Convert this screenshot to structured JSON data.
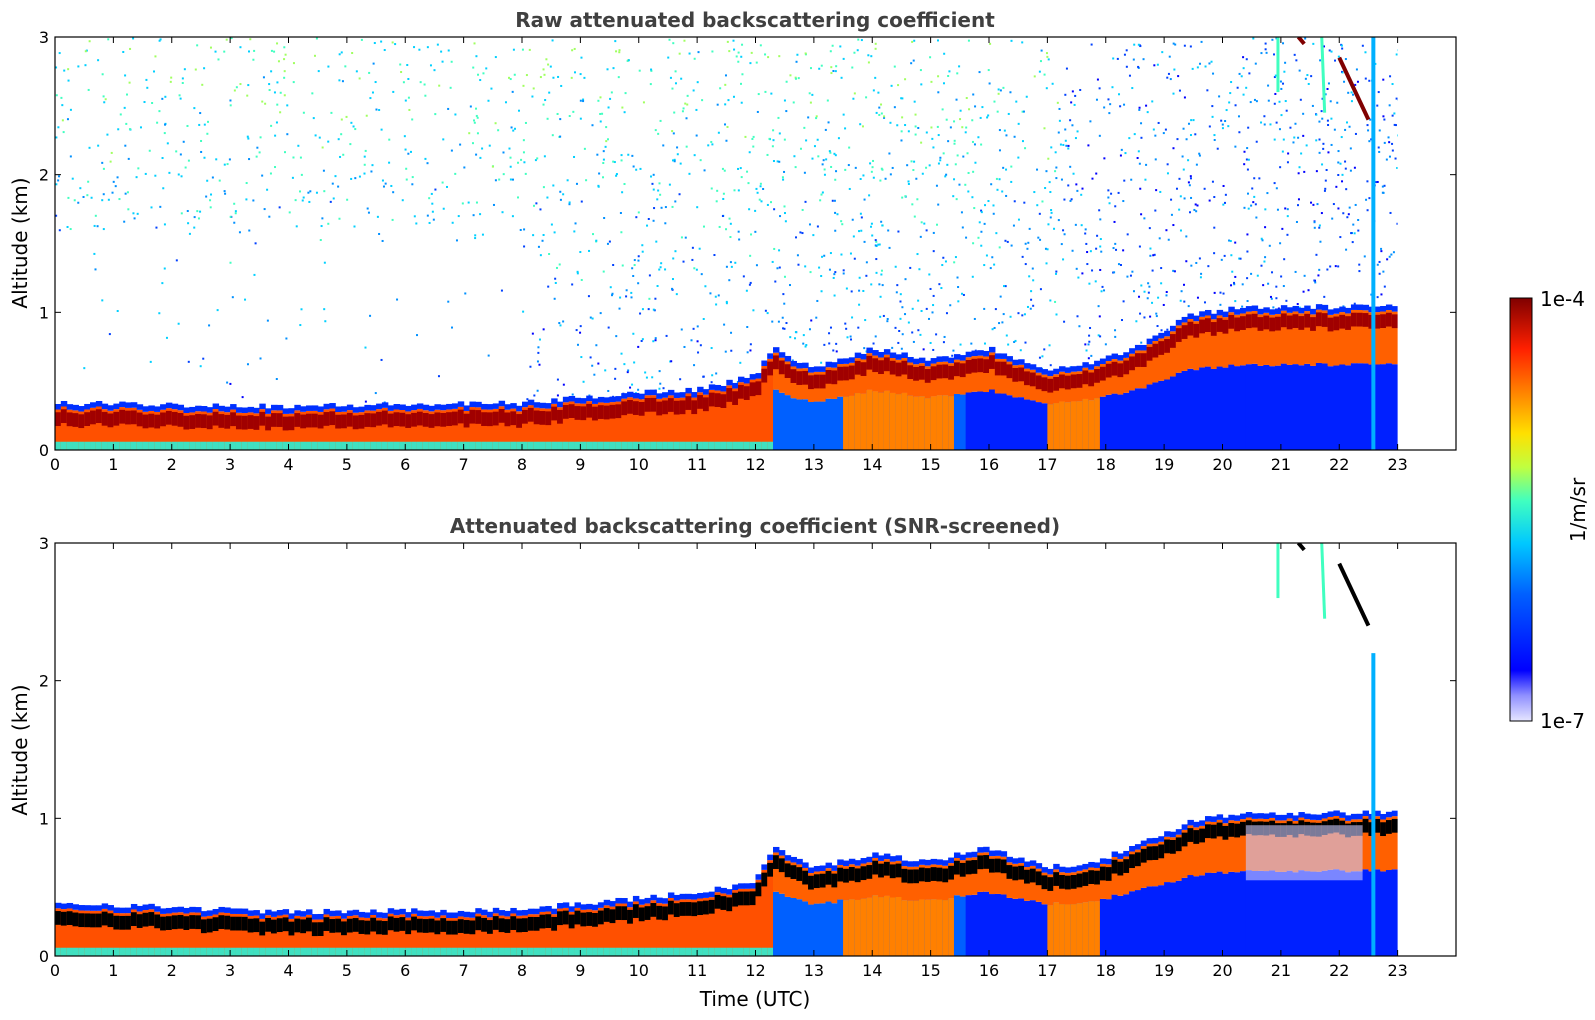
{
  "chart_data": [
    {
      "type": "heatmap",
      "title": "Raw attenuated backscattering coefficient",
      "ylabel": "Altitude (km)",
      "xlabel": "",
      "xlim": [
        0,
        24
      ],
      "ylim": [
        0,
        3
      ],
      "x_ticks": [
        "0",
        "1",
        "2",
        "3",
        "4",
        "5",
        "6",
        "7",
        "8",
        "9",
        "10",
        "11",
        "12",
        "13",
        "14",
        "15",
        "16",
        "17",
        "18",
        "19",
        "20",
        "21",
        "22",
        "23"
      ],
      "y_ticks": [
        "0",
        "1",
        "2",
        "3"
      ],
      "data_end_time": 23,
      "boundary_layer_top_km": [
        {
          "t": 0,
          "top": 0.3
        },
        {
          "t": 4,
          "top": 0.28
        },
        {
          "t": 8,
          "top": 0.3
        },
        {
          "t": 10,
          "top": 0.38
        },
        {
          "t": 11,
          "top": 0.4
        },
        {
          "t": 12,
          "top": 0.5
        },
        {
          "t": 12.3,
          "top": 0.7
        },
        {
          "t": 13,
          "top": 0.55
        },
        {
          "t": 14,
          "top": 0.7
        },
        {
          "t": 15,
          "top": 0.62
        },
        {
          "t": 16,
          "top": 0.7
        },
        {
          "t": 17,
          "top": 0.55
        },
        {
          "t": 17.8,
          "top": 0.6
        },
        {
          "t": 18.5,
          "top": 0.7
        },
        {
          "t": 19.5,
          "top": 0.95
        },
        {
          "t": 20.4,
          "top": 1.0
        }
      ],
      "noise": "high above boundary layer"
    },
    {
      "type": "heatmap",
      "title": "Attenuated backscattering coefficient (SNR-screened)",
      "ylabel": "Altitude (km)",
      "xlabel": "Time (UTC)",
      "xlim": [
        0,
        24
      ],
      "ylim": [
        0,
        3
      ],
      "x_ticks": [
        "0",
        "1",
        "2",
        "3",
        "4",
        "5",
        "6",
        "7",
        "8",
        "9",
        "10",
        "11",
        "12",
        "13",
        "14",
        "15",
        "16",
        "17",
        "18",
        "19",
        "20",
        "21",
        "22",
        "23"
      ],
      "y_ticks": [
        "0",
        "1",
        "2",
        "3"
      ],
      "data_end_time": 23,
      "boundary_layer_top_km": [
        {
          "t": 0,
          "top": 0.35
        },
        {
          "t": 4,
          "top": 0.28
        },
        {
          "t": 8,
          "top": 0.3
        },
        {
          "t": 10,
          "top": 0.38
        },
        {
          "t": 11,
          "top": 0.42
        },
        {
          "t": 12,
          "top": 0.5
        },
        {
          "t": 12.3,
          "top": 0.75
        },
        {
          "t": 13,
          "top": 0.6
        },
        {
          "t": 14,
          "top": 0.7
        },
        {
          "t": 15,
          "top": 0.65
        },
        {
          "t": 16,
          "top": 0.75
        },
        {
          "t": 17,
          "top": 0.6
        },
        {
          "t": 17.8,
          "top": 0.65
        },
        {
          "t": 18.5,
          "top": 0.75
        },
        {
          "t": 19.5,
          "top": 0.95
        },
        {
          "t": 20.4,
          "top": 1.0
        }
      ],
      "noise": "removed"
    }
  ],
  "colorbar": {
    "min_label": "1e-7",
    "max_label": "1e-4",
    "unit_label": "1/m/sr",
    "colormap": [
      "#e6e6ff",
      "#8080ff",
      "#0000ff",
      "#0064ff",
      "#00c8ff",
      "#40ffc0",
      "#c0ff40",
      "#ffe000",
      "#ff8000",
      "#ff2000",
      "#c00000",
      "#800000"
    ]
  }
}
